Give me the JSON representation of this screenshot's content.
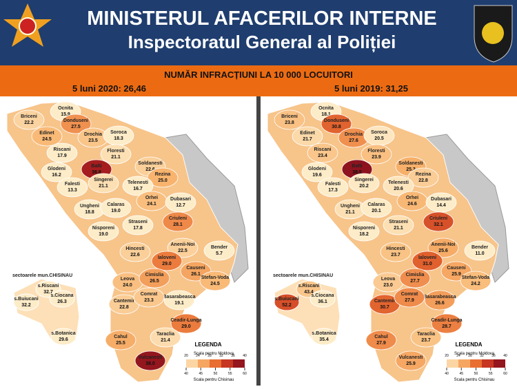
{
  "header": {
    "title": "MINISTERUL AFACERILOR INTERNE",
    "subtitle": "Inspectoratul General al Poliției"
  },
  "banner": {
    "title": "NUMĂR INFRACȚIUNI LA 10 000 LOCUITORI"
  },
  "panels": [
    {
      "period": "5 luni 2020: 26,46",
      "districts": [
        {
          "name": "Ocnita",
          "value": "15.9"
        },
        {
          "name": "Briceni",
          "value": "22.2"
        },
        {
          "name": "Donduseni",
          "value": "27.5"
        },
        {
          "name": "Edinet",
          "value": "24.5"
        },
        {
          "name": "Drochia",
          "value": "23.5"
        },
        {
          "name": "Soroca",
          "value": "18.3"
        },
        {
          "name": "Riscani",
          "value": "17.9"
        },
        {
          "name": "Floresti",
          "value": "21.1"
        },
        {
          "name": "Balti",
          "value": "36.8"
        },
        {
          "name": "Glodeni",
          "value": "16.2"
        },
        {
          "name": "Soldanesti",
          "value": "22.6"
        },
        {
          "name": "Singerei",
          "value": "21.1"
        },
        {
          "name": "Rezina",
          "value": "25.0"
        },
        {
          "name": "Falesti",
          "value": "13.3"
        },
        {
          "name": "Telenesti",
          "value": "16.7"
        },
        {
          "name": "Orhei",
          "value": "24.1"
        },
        {
          "name": "Ungheni",
          "value": "18.8"
        },
        {
          "name": "Calaras",
          "value": "19.0"
        },
        {
          "name": "Dubasari",
          "value": "12.7"
        },
        {
          "name": "Straseni",
          "value": "17.8"
        },
        {
          "name": "Criuleni",
          "value": "28.1"
        },
        {
          "name": "Nisporeni",
          "value": "19.0"
        },
        {
          "name": "Anenii-Noi",
          "value": "22.5"
        },
        {
          "name": "Bender",
          "value": "5.7"
        },
        {
          "name": "Hincesti",
          "value": "22.6"
        },
        {
          "name": "Ialoveni",
          "value": "29.0"
        },
        {
          "name": "Causeni",
          "value": "26.1"
        },
        {
          "name": "Stefan-Voda",
          "value": "24.5"
        },
        {
          "name": "Leova",
          "value": "24.0"
        },
        {
          "name": "Cimislia",
          "value": "26.5"
        },
        {
          "name": "Basarabeasca",
          "value": "19.1"
        },
        {
          "name": "Cantemir",
          "value": "22.8"
        },
        {
          "name": "Comrat",
          "value": "23.3"
        },
        {
          "name": "Ceadir-Lunga",
          "value": "29.0"
        },
        {
          "name": "Cahul",
          "value": "25.5"
        },
        {
          "name": "Taraclia",
          "value": "21.4"
        },
        {
          "name": "Vulcanesti",
          "value": "38.0"
        }
      ],
      "sectors_title": "sectoarele mun.CHISINAU",
      "sectors": [
        {
          "name": "s.Riscani",
          "value": "32.7"
        },
        {
          "name": "s.Buiucani",
          "value": "32.2"
        },
        {
          "name": "s.Ciocana",
          "value": "26.3"
        },
        {
          "name": "s.Botanica",
          "value": "29.6"
        }
      ]
    },
    {
      "period": "5 luni 2019: 31,25",
      "districts": [
        {
          "name": "Ocnita",
          "value": "18.1"
        },
        {
          "name": "Briceni",
          "value": "23.8"
        },
        {
          "name": "Donduseni",
          "value": "30.8"
        },
        {
          "name": "Edinet",
          "value": "21.7"
        },
        {
          "name": "Drochia",
          "value": "27.6"
        },
        {
          "name": "Soroca",
          "value": "20.5"
        },
        {
          "name": "Riscani",
          "value": "23.4"
        },
        {
          "name": "Floresti",
          "value": "23.9"
        },
        {
          "name": "Balti",
          "value": "38.5"
        },
        {
          "name": "Glodeni",
          "value": "19.6"
        },
        {
          "name": "Soldanesti",
          "value": "25.3"
        },
        {
          "name": "Singerei",
          "value": "20.2"
        },
        {
          "name": "Rezina",
          "value": "22.8"
        },
        {
          "name": "Falesti",
          "value": "17.3"
        },
        {
          "name": "Telenesti",
          "value": "20.6"
        },
        {
          "name": "Orhei",
          "value": "24.6"
        },
        {
          "name": "Ungheni",
          "value": "21.1"
        },
        {
          "name": "Calaras",
          "value": "20.1"
        },
        {
          "name": "Dubasari",
          "value": "14.4"
        },
        {
          "name": "Straseni",
          "value": "21.1"
        },
        {
          "name": "Criuleni",
          "value": "32.1"
        },
        {
          "name": "Nisporeni",
          "value": "18.2"
        },
        {
          "name": "Anenii-Noi",
          "value": "25.6"
        },
        {
          "name": "Bender",
          "value": "11.0"
        },
        {
          "name": "Hincesti",
          "value": "23.7"
        },
        {
          "name": "Ialoveni",
          "value": "31.0"
        },
        {
          "name": "Causeni",
          "value": "25.9"
        },
        {
          "name": "Stefan-Voda",
          "value": "24.2"
        },
        {
          "name": "Leova",
          "value": "23.0"
        },
        {
          "name": "Cimislia",
          "value": "27.7"
        },
        {
          "name": "Basarabeasca",
          "value": "26.6"
        },
        {
          "name": "Cantemir",
          "value": "30.7"
        },
        {
          "name": "Comrat",
          "value": "27.9"
        },
        {
          "name": "Ceadir-Lunga",
          "value": "28.7"
        },
        {
          "name": "Cahul",
          "value": "27.9"
        },
        {
          "name": "Taraclia",
          "value": "23.7"
        },
        {
          "name": "Vulcanesti",
          "value": "25.9"
        }
      ],
      "sectors_title": "sectoarele mun.CHISINAU",
      "sectors": [
        {
          "name": "s.Riscani",
          "value": "43.4"
        },
        {
          "name": "s.Buiucani",
          "value": "52.2"
        },
        {
          "name": "s.Ciocana",
          "value": "36.1"
        },
        {
          "name": "s.Botanica",
          "value": "35.4"
        }
      ]
    }
  ],
  "legend": {
    "title": "LEGENDA",
    "scale_moldova": "Scala pentru Moldova",
    "scale_chisinau": "Scala pentru Chisinau",
    "ticks_moldova": [
      20,
      24,
      28,
      32,
      36,
      40
    ],
    "ticks_chisinau": [
      40,
      45,
      50,
      55,
      60
    ]
  }
}
